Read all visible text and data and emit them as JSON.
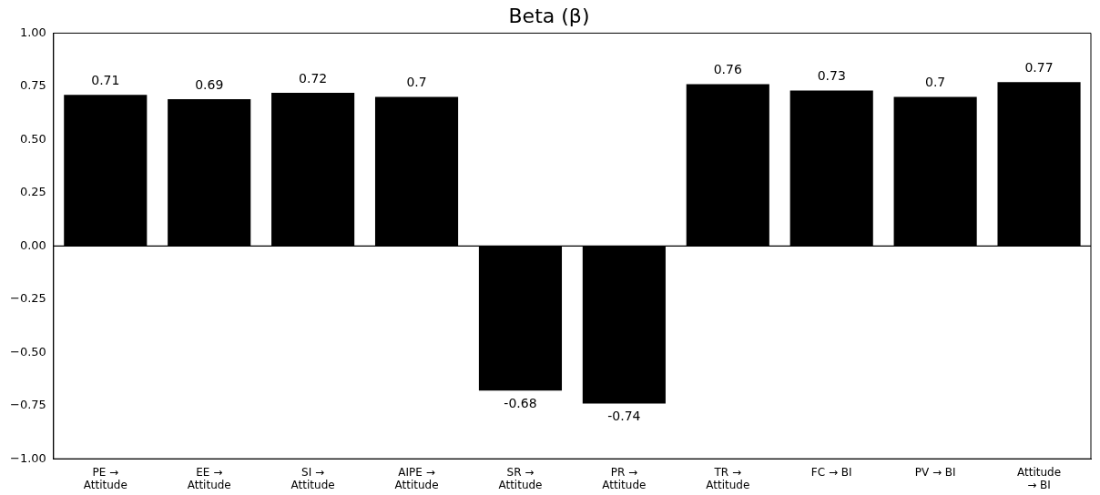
{
  "chart_data": {
    "type": "bar",
    "title": "Beta (β)",
    "categories": [
      "PE →\nAttitude",
      "EE →\nAttitude",
      "SI →\nAttitude",
      "AIPE →\nAttitude",
      "SR →\nAttitude",
      "PR →\nAttitude",
      "TR →\nAttitude",
      "FC → BI",
      "PV → BI",
      "Attitude\n→ BI"
    ],
    "values": [
      0.71,
      0.69,
      0.72,
      0.7,
      -0.68,
      -0.74,
      0.76,
      0.73,
      0.7,
      0.77
    ],
    "color": "#000000",
    "ylim": [
      -1,
      1
    ],
    "yticks": [
      {
        "value": -1,
        "label": "−1.00"
      },
      {
        "value": -0.75,
        "label": "−0.75"
      },
      {
        "value": -0.5,
        "label": "−0.50"
      },
      {
        "value": -0.25,
        "label": "−0.25"
      },
      {
        "value": 0,
        "label": "0.00"
      },
      {
        "value": 0.25,
        "label": "0.25"
      },
      {
        "value": 0.5,
        "label": "0.50"
      },
      {
        "value": 0.75,
        "label": "0.75"
      },
      {
        "value": 1,
        "label": "1.00"
      }
    ],
    "ref_lines": [
      {
        "axis": "y",
        "value": 0,
        "color": "#000000"
      }
    ],
    "data_labels": true,
    "grid": false,
    "legend": false
  }
}
